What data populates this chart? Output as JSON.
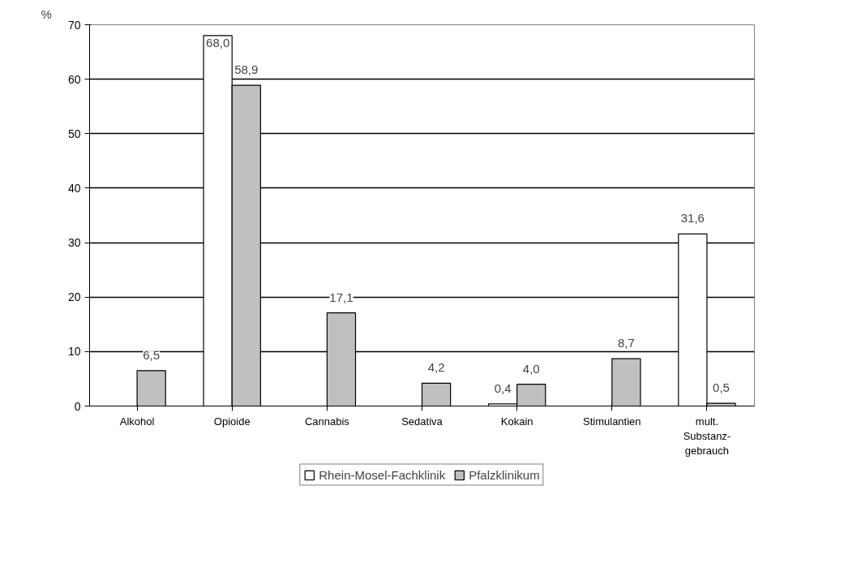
{
  "chart_data": {
    "type": "bar",
    "ylabel": "%",
    "categories": [
      "Alkohol",
      "Opioide",
      "Cannabis",
      "Sedativa",
      "Kokain",
      "Stimulantien",
      "mult.\nSubstanz-\ngebrauch"
    ],
    "series": [
      {
        "name": "Rhein-Mosel-Fachklinik",
        "color": "#ffffff",
        "values": [
          null,
          68.0,
          null,
          null,
          0.4,
          null,
          31.6
        ],
        "value_labels": [
          null,
          "68,0",
          null,
          null,
          "0,4",
          null,
          "31,6"
        ]
      },
      {
        "name": "Pfalzklinikum",
        "color": "#c0c0c0",
        "values": [
          6.5,
          58.9,
          17.1,
          4.2,
          4.0,
          8.7,
          0.5
        ],
        "value_labels": [
          "6,5",
          "58,9",
          "17,1",
          "4,2",
          "4,0",
          "8,7",
          "0,5"
        ]
      }
    ],
    "ylim": [
      0,
      70
    ],
    "yticks": [
      0,
      10,
      20,
      30,
      40,
      50,
      60,
      70
    ],
    "grid": "y",
    "legend": "bottom"
  }
}
